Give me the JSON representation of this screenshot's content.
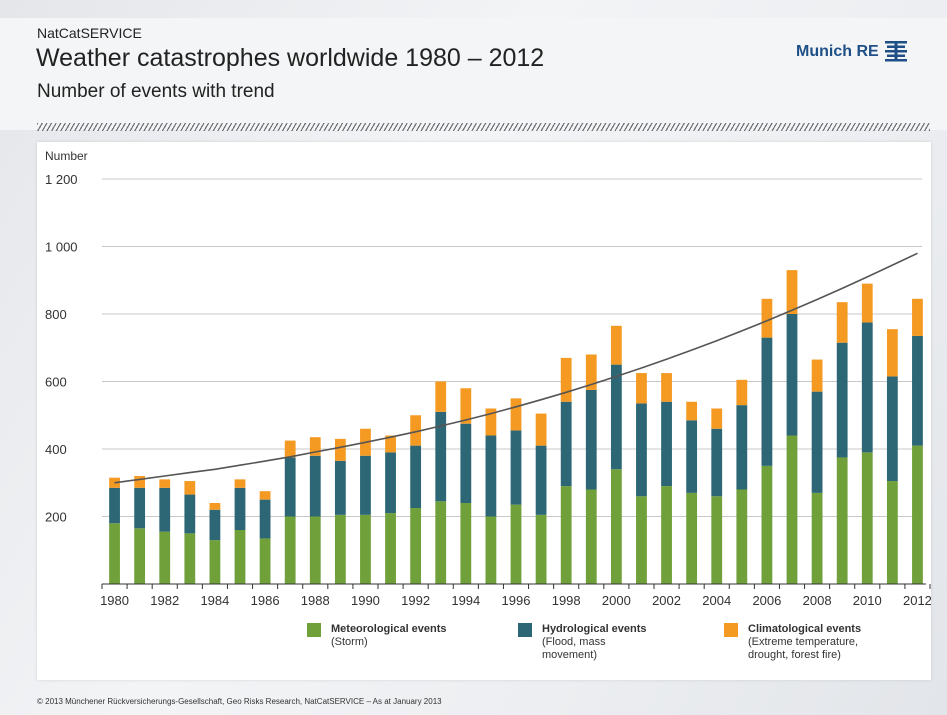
{
  "header": {
    "kicker": "NatCatSERVICE",
    "title": "Weather catastrophes worldwide 1980 – 2012",
    "subtitle": "Number of events with trend"
  },
  "logo": {
    "text": "Munich RE",
    "icon": "munich-re-logo-icon"
  },
  "footer": "© 2013 Münchener Rückversicherungs-Gesellschaft, Geo Risks Research, NatCatSERVICE – As at January 2013",
  "chart_data": {
    "type": "bar",
    "stacked": true,
    "title": "",
    "ylabel": "Number",
    "xlabel": "",
    "ylim": [
      0,
      1200
    ],
    "yticks": [
      200,
      400,
      600,
      800,
      1000,
      1200
    ],
    "ytick_labels": [
      "200",
      "400",
      "600",
      "800",
      "1 000",
      "1 200"
    ],
    "grid": true,
    "legend_position": "bottom",
    "categories": [
      1980,
      1981,
      1982,
      1983,
      1984,
      1985,
      1986,
      1987,
      1988,
      1989,
      1990,
      1991,
      1992,
      1993,
      1994,
      1995,
      1996,
      1997,
      1998,
      1999,
      2000,
      2001,
      2002,
      2003,
      2004,
      2005,
      2006,
      2007,
      2008,
      2009,
      2010,
      2011,
      2012
    ],
    "xtick_labels": [
      "1980",
      "1982",
      "1984",
      "1986",
      "1988",
      "1990",
      "1992",
      "1994",
      "1996",
      "1998",
      "2000",
      "2002",
      "2004",
      "2006",
      "2008",
      "2010",
      "2012"
    ],
    "series": [
      {
        "name": "Meteorological events",
        "description": "(Storm)",
        "color": "#70a03a",
        "values": [
          180,
          165,
          155,
          150,
          130,
          160,
          135,
          200,
          200,
          205,
          205,
          210,
          225,
          245,
          240,
          200,
          235,
          205,
          290,
          280,
          340,
          260,
          290,
          270,
          260,
          280,
          350,
          440,
          270,
          375,
          390,
          305,
          410
        ]
      },
      {
        "name": "Hydrological events",
        "description": "(Flood, mass\nmovement)",
        "color": "#2d6776",
        "values": [
          105,
          120,
          130,
          115,
          90,
          125,
          115,
          175,
          180,
          160,
          175,
          180,
          185,
          265,
          235,
          240,
          220,
          205,
          250,
          295,
          310,
          275,
          250,
          215,
          200,
          250,
          380,
          360,
          300,
          340,
          385,
          310,
          325
        ]
      },
      {
        "name": "Climatological events",
        "description": "(Extreme temperature,\ndrought, forest fire)",
        "color": "#f49a22",
        "values": [
          30,
          35,
          25,
          40,
          20,
          25,
          25,
          50,
          55,
          65,
          80,
          50,
          90,
          90,
          105,
          80,
          95,
          95,
          130,
          105,
          115,
          90,
          85,
          55,
          60,
          75,
          115,
          130,
          95,
          120,
          115,
          140,
          110
        ]
      }
    ],
    "trend": {
      "name": "trend",
      "color": "#555555",
      "values": [
        300,
        310,
        320,
        330,
        340,
        352,
        364,
        377,
        391,
        405,
        420,
        435,
        451,
        468,
        486,
        505,
        525,
        546,
        568,
        591,
        615,
        640,
        666,
        693,
        721,
        750,
        780,
        811,
        843,
        876,
        910,
        945,
        980
      ]
    }
  }
}
